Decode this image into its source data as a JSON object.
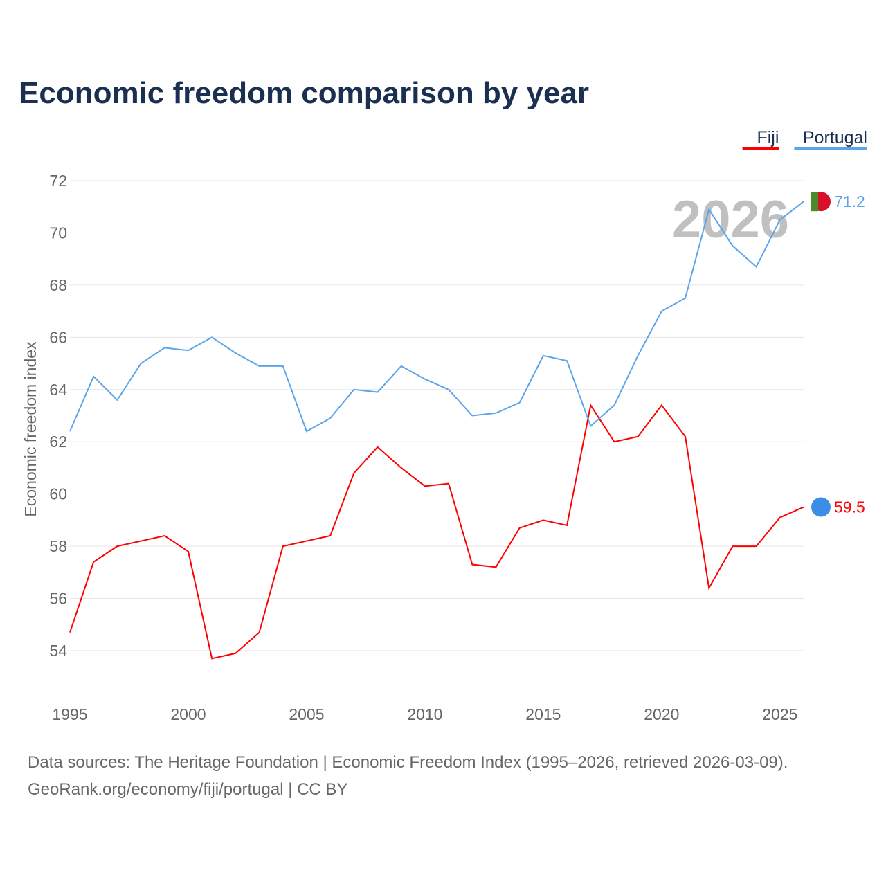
{
  "chart_data": {
    "type": "line",
    "title": "Economic freedom comparison by year",
    "xlabel": "",
    "ylabel": "Economic freedom index",
    "xlim": [
      1995,
      2026
    ],
    "ylim": [
      52.5,
      72.5
    ],
    "x_ticks": [
      "1995",
      "2000",
      "2005",
      "2010",
      "2015",
      "2020",
      "2025"
    ],
    "y_ticks": [
      "54",
      "56",
      "58",
      "60",
      "62",
      "64",
      "66",
      "68",
      "70",
      "72"
    ],
    "grid": true,
    "legend_placement": "top-right",
    "watermark_year": "2026",
    "x": [
      1995,
      1996,
      1997,
      1998,
      1999,
      2000,
      2001,
      2002,
      2003,
      2004,
      2005,
      2006,
      2007,
      2008,
      2009,
      2010,
      2011,
      2012,
      2013,
      2014,
      2015,
      2016,
      2017,
      2018,
      2019,
      2020,
      2021,
      2022,
      2023,
      2024,
      2025,
      2026
    ],
    "series": [
      {
        "name": "Fiji",
        "color": "#ff0000",
        "end_label": "59.5",
        "values": [
          54.7,
          57.4,
          58.0,
          58.2,
          58.4,
          57.8,
          53.7,
          53.9,
          54.7,
          58.0,
          58.2,
          58.4,
          60.8,
          61.8,
          61.0,
          60.3,
          60.4,
          57.3,
          57.2,
          58.7,
          59.0,
          58.8,
          63.4,
          62.0,
          62.2,
          63.4,
          62.2,
          56.4,
          58.0,
          58.0,
          59.1,
          59.5
        ]
      },
      {
        "name": "Portugal",
        "color": "#5aa5ea",
        "end_label": "71.2",
        "values": [
          62.4,
          64.5,
          63.6,
          65.0,
          65.6,
          65.5,
          66.0,
          65.4,
          64.9,
          64.9,
          62.4,
          62.9,
          64.0,
          63.9,
          64.9,
          64.4,
          64.0,
          63.0,
          63.1,
          63.5,
          65.3,
          65.1,
          62.6,
          63.4,
          65.3,
          67.0,
          67.5,
          70.9,
          69.5,
          68.7,
          70.5,
          71.2
        ]
      }
    ]
  },
  "footer": {
    "line1": "Data sources: The Heritage Foundation | Economic Freedom Index (1995–2026, retrieved 2026-03-09).",
    "line2": "GeoRank.org/economy/fiji/portugal | CC BY"
  }
}
